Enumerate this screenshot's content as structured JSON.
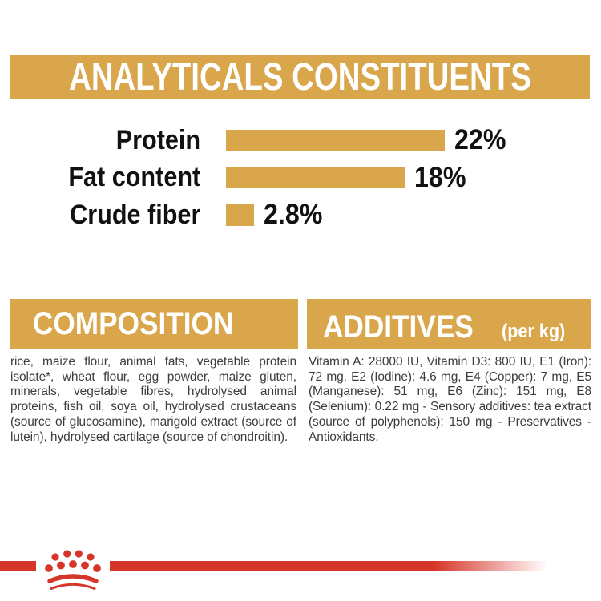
{
  "header": {
    "title": "ANALYTICALS CONSTITUENTS"
  },
  "chart_data": {
    "type": "bar",
    "orientation": "horizontal",
    "categories": [
      "Protein",
      "Fat content",
      "Crude fiber"
    ],
    "values": [
      22,
      18,
      2.8
    ],
    "value_labels": [
      "22%",
      "18%",
      "2.8%"
    ],
    "unit": "%",
    "xlim": [
      0,
      22
    ],
    "bar_color": "#d9a64c",
    "grid": false,
    "legend": false
  },
  "composition": {
    "title": "COMPOSITION",
    "text": "rice, maize flour, animal fats, vegetable protein isolate*, wheat flour, egg powder, maize gluten, minerals, vegetable fibres, hydrolysed animal proteins, fish oil, soya oil, hydrolysed crustaceans (source of glucosamine), marigold extract (source of lutein), hydrolysed cartilage (source of chondroitin)."
  },
  "additives": {
    "title": "ADDITIVES",
    "title_suffix": "(per kg)",
    "text": "Vitamin A: 28000 IU, Vitamin D3: 800 IU, E1 (Iron): 72 mg, E2 (Iodine): 4.6 mg, E4 (Copper): 7 mg, E5 (Manganese): 51 mg, E6 (Zinc): 151 mg, E8 (Selenium): 0.22 mg - Sensory additives: tea extract (source of polyphenols): 150 mg - Preservatives - Antioxidants."
  },
  "footer": {
    "logo": "royal-canin-crown"
  },
  "colors": {
    "gold": "#d9a64c",
    "red": "#d6362a",
    "body_text": "#3d3d3d",
    "label_text": "#111111",
    "header_text": "#ffffff"
  }
}
